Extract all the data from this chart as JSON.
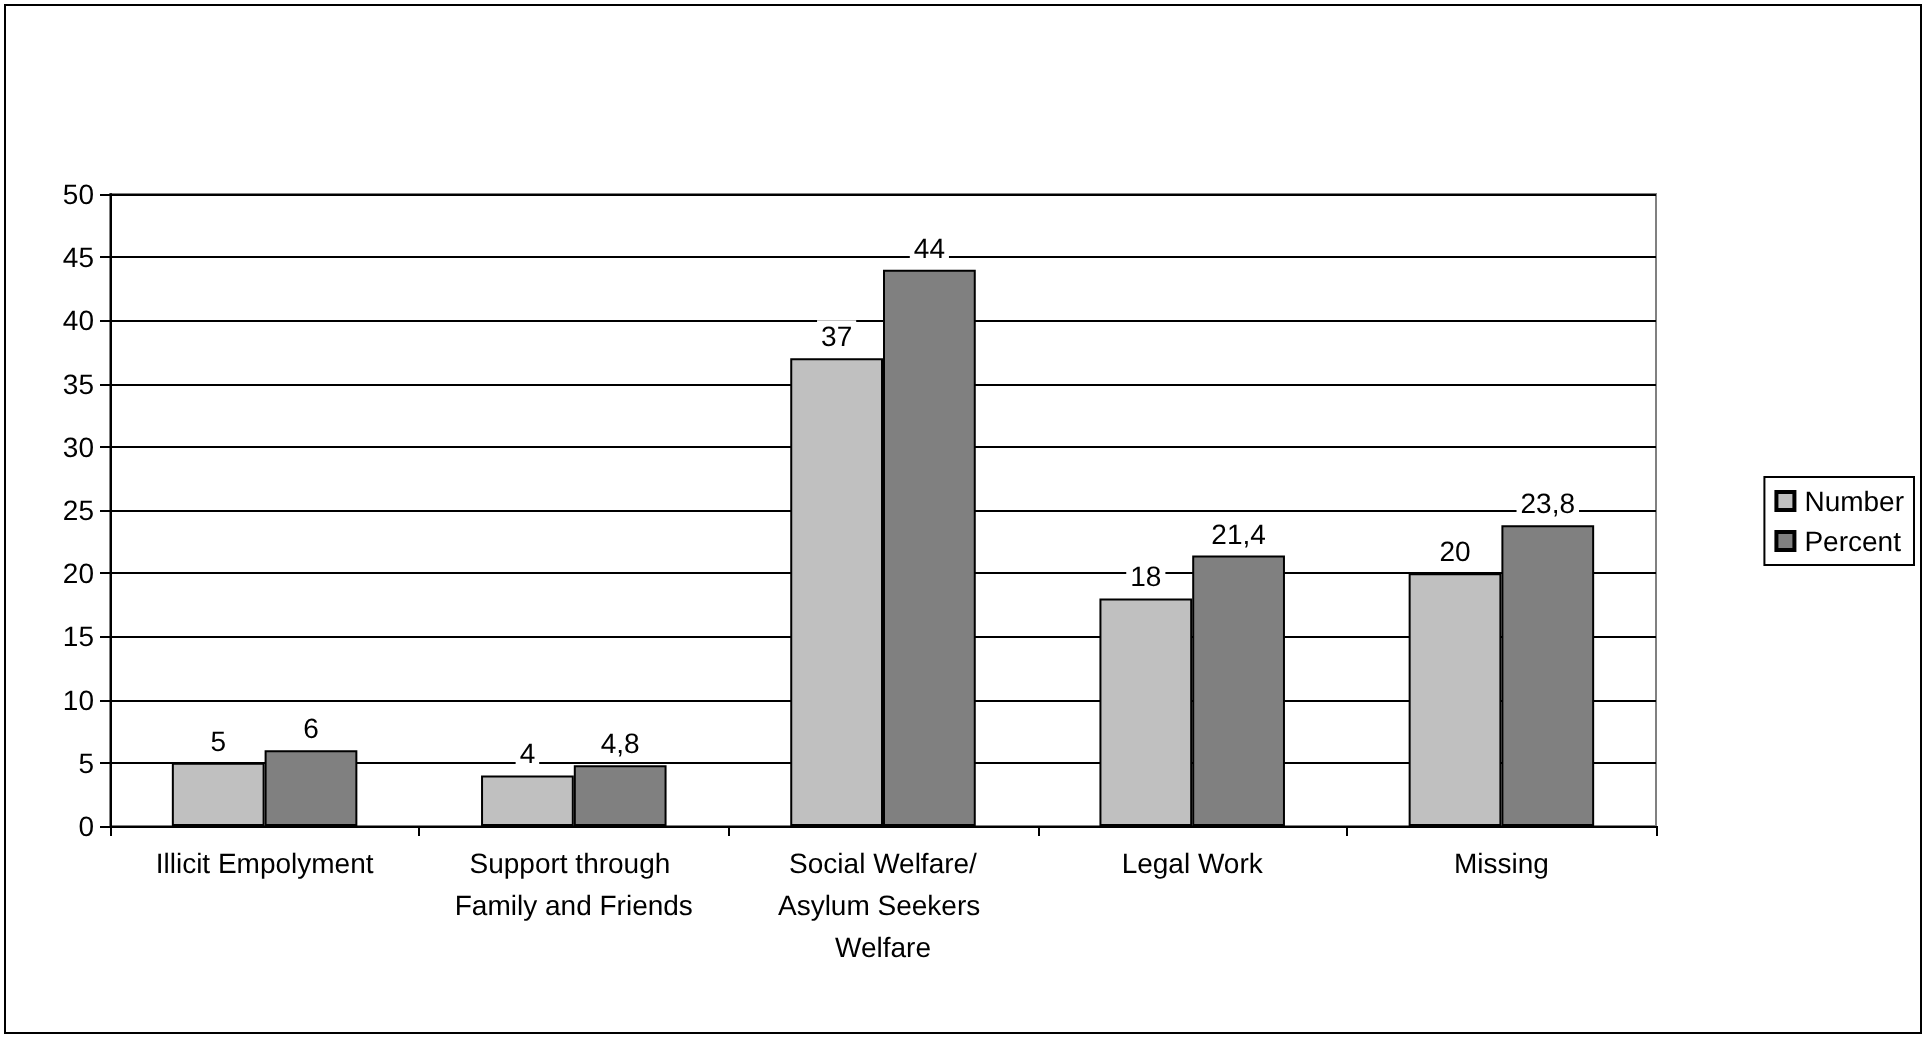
{
  "chart_data": {
    "type": "bar",
    "categories": [
      "Illicit Empolyment",
      "Support through Family and Friends",
      "Social Welfare/Asylum Seekers Welfare",
      "Legal Work",
      "Missing"
    ],
    "series": [
      {
        "name": "Number",
        "color": "#c0c0c0",
        "values": [
          5,
          4,
          37,
          18,
          20
        ],
        "value_labels": [
          "5",
          "4",
          "37",
          "18",
          "20"
        ]
      },
      {
        "name": "Percent",
        "color": "#808080",
        "values": [
          6,
          4.8,
          44,
          21.4,
          23.8
        ],
        "value_labels": [
          "6",
          "4,8",
          "44",
          "21,4",
          "23,8"
        ]
      }
    ],
    "ylim": [
      0,
      50
    ],
    "yticks": [
      0,
      5,
      10,
      15,
      20,
      25,
      30,
      35,
      40,
      45,
      50
    ],
    "grid": "y",
    "legend": "right"
  }
}
